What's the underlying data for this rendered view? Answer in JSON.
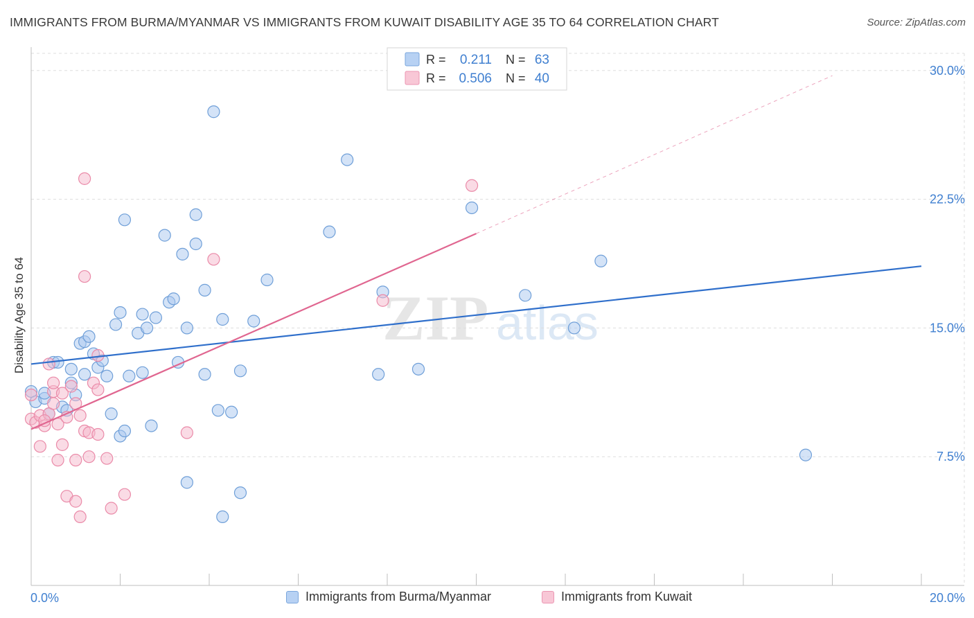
{
  "title": "IMMIGRANTS FROM BURMA/MYANMAR VS IMMIGRANTS FROM KUWAIT DISABILITY AGE 35 TO 64 CORRELATION CHART",
  "source": "Source: ZipAtlas.com",
  "watermark": {
    "zip": "ZIP",
    "atlas": "atlas"
  },
  "colors": {
    "blue_fill": "#a9c8f0",
    "blue_stroke": "#6f9fd8",
    "blue_line": "#2f6fcb",
    "pink_fill": "#f6b8cb",
    "pink_stroke": "#ea8aa8",
    "pink_line": "#e06690",
    "axis_label": "#3f7fd0",
    "grid": "#dddddd"
  },
  "legend_top": {
    "rows": [
      {
        "r_label": "R =",
        "r_value": "0.211",
        "n_label": "N =",
        "n_value": "63",
        "series": "blue"
      },
      {
        "r_label": "R =",
        "r_value": "0.506",
        "n_label": "N =",
        "n_value": "40",
        "series": "pink"
      }
    ]
  },
  "legend_bottom": [
    {
      "label": "Immigrants from Burma/Myanmar",
      "series": "blue"
    },
    {
      "label": "Immigrants from Kuwait",
      "series": "pink"
    }
  ],
  "chart_data": {
    "type": "scatter",
    "title": "IMMIGRANTS FROM BURMA/MYANMAR VS IMMIGRANTS FROM KUWAIT DISABILITY AGE 35 TO 64 CORRELATION CHART",
    "xlabel": "",
    "ylabel": "Disability Age 35 to 64",
    "xlim": [
      0,
      20
    ],
    "ylim": [
      0,
      31
    ],
    "x_tick_labels": [
      {
        "value": 0,
        "label": "0.0%"
      },
      {
        "value": 20,
        "label": "20.0%"
      }
    ],
    "y_ticks": [
      {
        "value": 7.5,
        "label": "7.5%"
      },
      {
        "value": 15,
        "label": "15.0%"
      },
      {
        "value": 22.5,
        "label": "22.5%"
      },
      {
        "value": 30,
        "label": "30.0%"
      }
    ],
    "x_minor_ticks": [
      2,
      4,
      6,
      8,
      10,
      12,
      14,
      16,
      18,
      20
    ],
    "grid": true,
    "series": [
      {
        "name": "Immigrants from Burma/Myanmar",
        "color": "blue",
        "R": 0.211,
        "N": 63,
        "trend": {
          "x": [
            0,
            20
          ],
          "y": [
            12.9,
            18.6
          ],
          "dashed_extension": false
        },
        "points": [
          [
            0.0,
            11.3
          ],
          [
            0.1,
            10.7
          ],
          [
            0.3,
            10.9
          ],
          [
            0.3,
            11.2
          ],
          [
            0.4,
            10.0
          ],
          [
            0.5,
            13.0
          ],
          [
            0.6,
            13.0
          ],
          [
            0.7,
            10.4
          ],
          [
            0.8,
            10.2
          ],
          [
            0.9,
            12.6
          ],
          [
            0.9,
            11.8
          ],
          [
            1.0,
            11.1
          ],
          [
            1.1,
            14.1
          ],
          [
            1.2,
            12.3
          ],
          [
            1.2,
            14.2
          ],
          [
            1.3,
            14.5
          ],
          [
            1.4,
            13.5
          ],
          [
            1.5,
            12.7
          ],
          [
            1.6,
            13.1
          ],
          [
            1.7,
            12.2
          ],
          [
            1.8,
            10.0
          ],
          [
            1.9,
            15.2
          ],
          [
            2.0,
            8.7
          ],
          [
            2.1,
            9.0
          ],
          [
            2.1,
            21.3
          ],
          [
            2.2,
            12.2
          ],
          [
            2.4,
            14.7
          ],
          [
            2.5,
            12.4
          ],
          [
            2.5,
            15.8
          ],
          [
            2.6,
            15.0
          ],
          [
            2.7,
            9.3
          ],
          [
            2.8,
            15.6
          ],
          [
            3.0,
            20.4
          ],
          [
            3.1,
            16.5
          ],
          [
            3.2,
            16.7
          ],
          [
            3.3,
            13.0
          ],
          [
            3.4,
            19.3
          ],
          [
            3.5,
            15.0
          ],
          [
            3.5,
            6.0
          ],
          [
            3.7,
            21.6
          ],
          [
            3.7,
            19.9
          ],
          [
            3.9,
            17.2
          ],
          [
            3.9,
            12.3
          ],
          [
            4.1,
            27.6
          ],
          [
            4.2,
            10.2
          ],
          [
            4.3,
            15.5
          ],
          [
            4.3,
            4.0
          ],
          [
            4.5,
            10.1
          ],
          [
            4.7,
            12.5
          ],
          [
            4.7,
            5.4
          ],
          [
            5.0,
            15.4
          ],
          [
            5.3,
            17.8
          ],
          [
            6.7,
            20.6
          ],
          [
            7.1,
            24.8
          ],
          [
            7.8,
            12.3
          ],
          [
            7.9,
            17.1
          ],
          [
            8.7,
            12.6
          ],
          [
            9.9,
            22.0
          ],
          [
            11.1,
            16.9
          ],
          [
            12.2,
            15.0
          ],
          [
            12.8,
            18.9
          ],
          [
            17.4,
            7.6
          ],
          [
            2.0,
            15.9
          ]
        ]
      },
      {
        "name": "Immigrants from Kuwait",
        "color": "pink",
        "R": 0.506,
        "N": 40,
        "trend": {
          "x": [
            0,
            10
          ],
          "y": [
            9.1,
            20.5
          ],
          "dashed_extension": true,
          "extension_to": [
            18,
            29.7
          ]
        },
        "points": [
          [
            0.0,
            9.7
          ],
          [
            0.0,
            11.1
          ],
          [
            0.1,
            9.5
          ],
          [
            0.2,
            9.9
          ],
          [
            0.2,
            8.1
          ],
          [
            0.3,
            9.3
          ],
          [
            0.4,
            10.0
          ],
          [
            0.4,
            12.9
          ],
          [
            0.5,
            11.3
          ],
          [
            0.5,
            10.6
          ],
          [
            0.6,
            9.4
          ],
          [
            0.6,
            7.3
          ],
          [
            0.7,
            8.2
          ],
          [
            0.7,
            11.2
          ],
          [
            0.8,
            9.8
          ],
          [
            0.8,
            5.2
          ],
          [
            0.9,
            11.6
          ],
          [
            1.0,
            10.6
          ],
          [
            1.0,
            4.9
          ],
          [
            1.0,
            7.3
          ],
          [
            1.1,
            4.0
          ],
          [
            1.1,
            9.9
          ],
          [
            1.2,
            23.7
          ],
          [
            1.2,
            18.0
          ],
          [
            1.2,
            9.0
          ],
          [
            1.3,
            7.5
          ],
          [
            1.3,
            8.9
          ],
          [
            1.4,
            11.8
          ],
          [
            1.5,
            13.4
          ],
          [
            1.5,
            11.4
          ],
          [
            1.5,
            8.8
          ],
          [
            1.7,
            7.4
          ],
          [
            1.8,
            4.5
          ],
          [
            2.1,
            5.3
          ],
          [
            3.5,
            8.9
          ],
          [
            4.1,
            19.0
          ],
          [
            7.9,
            16.6
          ],
          [
            9.9,
            23.3
          ],
          [
            0.5,
            11.8
          ],
          [
            0.3,
            9.6
          ]
        ]
      }
    ]
  }
}
